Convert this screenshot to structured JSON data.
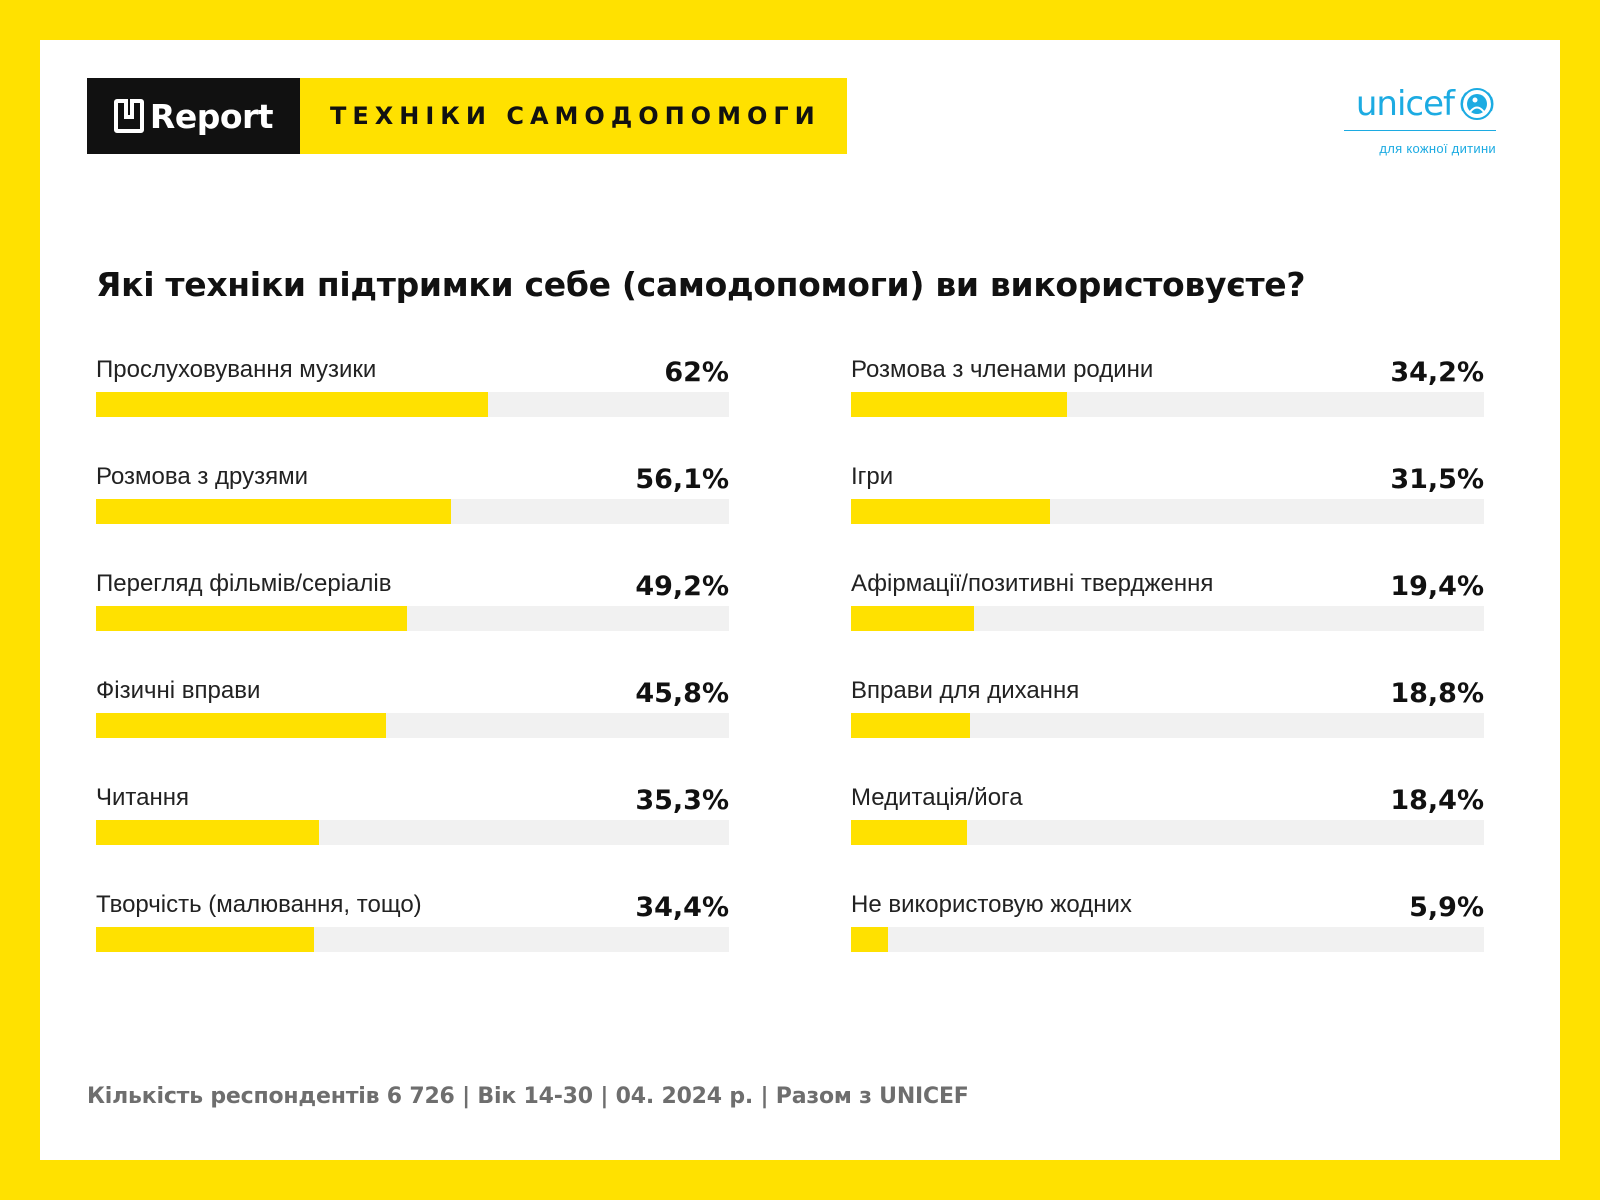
{
  "header": {
    "brand": "Report",
    "title": "ТЕХНІКИ САМОДОПОМОГИ",
    "partner": "unicef",
    "partner_tagline": "для кожної дитини"
  },
  "colors": {
    "background": "#FFE100",
    "bar_fill": "#FFE100",
    "bar_track": "#F1F1F1",
    "unicef_blue": "#1CABE2"
  },
  "chart_data": {
    "type": "bar",
    "orientation": "horizontal",
    "title": "Які техніки підтримки себе (самодопомоги) ви використовуєте?",
    "xlim": [
      0,
      100
    ],
    "unit": "%",
    "grid": false,
    "legend": "none",
    "categories": [
      "Прослуховування музики",
      "Розмова з друзями",
      "Перегляд фільмів/серіалів",
      "Фізичні вправи",
      "Читання",
      "Творчість (малювання, тощо)",
      "Розмова з членами родини",
      "Ігри",
      "Афірмації/позитивні твердження",
      "Вправи для дихання",
      "Медитація/йога",
      "Не використовую жодних"
    ],
    "values": [
      62,
      56.1,
      49.2,
      45.8,
      35.3,
      34.4,
      34.2,
      31.5,
      19.4,
      18.8,
      18.4,
      5.9
    ],
    "value_labels": [
      "62%",
      "56,1%",
      "49,2%",
      "45,8%",
      "35,3%",
      "34,4%",
      "34,2%",
      "31,5%",
      "19,4%",
      "18,8%",
      "18,4%",
      "5,9%"
    ]
  },
  "footer": "Кількість респондентів 6 726 | Вік 14-30 | 04. 2024 р. | Разом з UNICEF"
}
